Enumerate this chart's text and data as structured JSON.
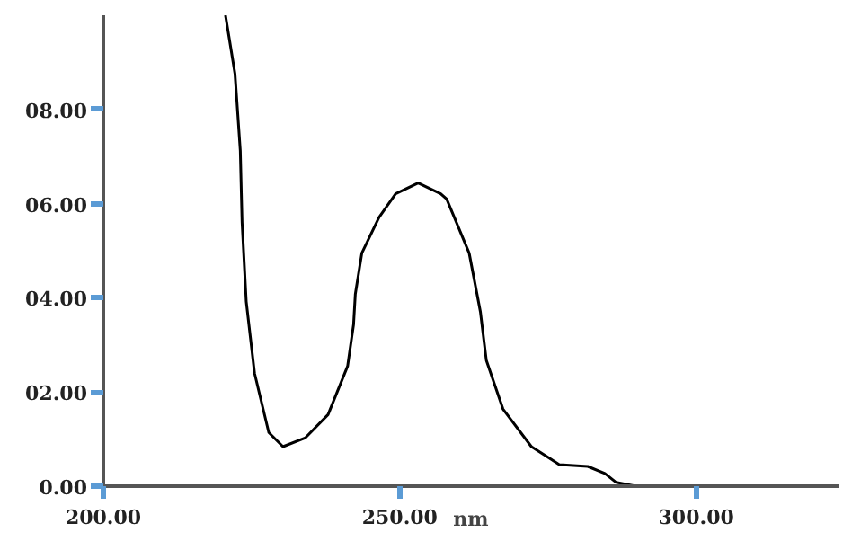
{
  "chart_data": {
    "type": "line",
    "xlabel": "nm",
    "xlim": [
      200,
      324
    ],
    "ylim": [
      0,
      10
    ],
    "xticks": [
      {
        "value": 200,
        "label": "200.00"
      },
      {
        "value": 250,
        "label": "250.00"
      },
      {
        "value": 300,
        "label": "300.00"
      }
    ],
    "yticks": [
      {
        "value": 0,
        "label": "0.00"
      },
      {
        "value": 2,
        "label": "02.00"
      },
      {
        "value": 4,
        "label": "04.00"
      },
      {
        "value": 6,
        "label": "06.00"
      },
      {
        "value": 8,
        "label": "08.00"
      }
    ],
    "grid": false,
    "marker": "none",
    "line_style": "solid",
    "series": [
      {
        "color": "#000000",
        "x": [
          220.6,
          222.2,
          223.1,
          223.4,
          224.1,
          225.5,
          227.9,
          230.3,
          234.1,
          237.9,
          241.2,
          242.2,
          242.5,
          243.6,
          246.5,
          249.3,
          253.1,
          256.9,
          257.9,
          261.7,
          263.6,
          264.6,
          267.4,
          272.2,
          276.9,
          281.7,
          284.6,
          286.5,
          289.8
        ],
        "values": [
          10.0,
          8.76,
          7.12,
          5.6,
          3.92,
          2.4,
          1.14,
          0.84,
          1.03,
          1.52,
          2.55,
          3.43,
          4.08,
          4.95,
          5.71,
          6.21,
          6.44,
          6.21,
          6.1,
          4.95,
          3.7,
          2.67,
          1.64,
          0.84,
          0.46,
          0.42,
          0.27,
          0.08,
          0.0
        ]
      }
    ]
  }
}
